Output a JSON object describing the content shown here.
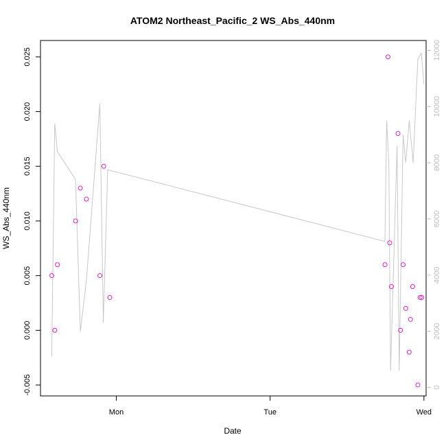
{
  "chart_data": {
    "type": "scatter",
    "title": "ATOM2 Northeast_Pacific_2 WS_Abs_440nm",
    "xlabel": "Date",
    "ylabel": "WS_Abs_440nm",
    "x_ticks": [
      "Mon",
      "Tue",
      "Wed"
    ],
    "y_ticks": [
      "-0.005",
      "0.000",
      "0.005",
      "0.010",
      "0.015",
      "0.020",
      "0.025"
    ],
    "y2_ticks": [
      "0",
      "2000",
      "4000",
      "6000",
      "8000",
      "10000",
      "12000"
    ],
    "ylim": [
      -0.006,
      0.0265
    ],
    "y2lim": [
      -300,
      12350
    ],
    "xlim_hours": [
      -17.5,
      71.5
    ],
    "x_unit": "hours relative to Mon 00:00",
    "colors": {
      "points": "#e020c8",
      "line": "#c8c8c8",
      "right_axis": "#bebebe"
    },
    "series": [
      {
        "kind": "points",
        "axis": "left",
        "x": [
          -14.9,
          -14.2,
          -13.6,
          -9.4,
          -8.3,
          -6.9,
          -3.8,
          -2.9,
          -1.5,
          62.0,
          62.7,
          63.1,
          63.5,
          65.0,
          65.6,
          66.2,
          66.8,
          67.6,
          67.9,
          68.4,
          69.6,
          70.1,
          70.5
        ],
        "y": [
          0.005,
          0.0,
          0.006,
          0.01,
          0.013,
          0.012,
          0.005,
          0.015,
          0.003,
          0.006,
          0.025,
          0.008,
          0.004,
          0.018,
          0.0,
          0.006,
          0.002,
          -0.002,
          0.001,
          0.004,
          -0.005,
          0.003,
          0.003
        ]
      },
      {
        "kind": "line",
        "axis": "right",
        "x": [
          -14.9,
          -14.2,
          -13.6,
          -9.4,
          -8.3,
          -6.9,
          -3.8,
          -3.0,
          -2.0,
          62.0,
          62.4,
          62.9,
          63.3,
          64.8,
          65.3,
          66.2,
          66.8,
          67.6,
          68.5,
          69.6,
          70.4,
          71.0
        ],
        "y": [
          1100,
          9400,
          8400,
          7400,
          2000,
          3800,
          10100,
          2300,
          7750,
          5200,
          9500,
          8000,
          600,
          8600,
          600,
          9000,
          8000,
          9500,
          8000,
          11700,
          11900,
          10800
        ]
      }
    ]
  }
}
